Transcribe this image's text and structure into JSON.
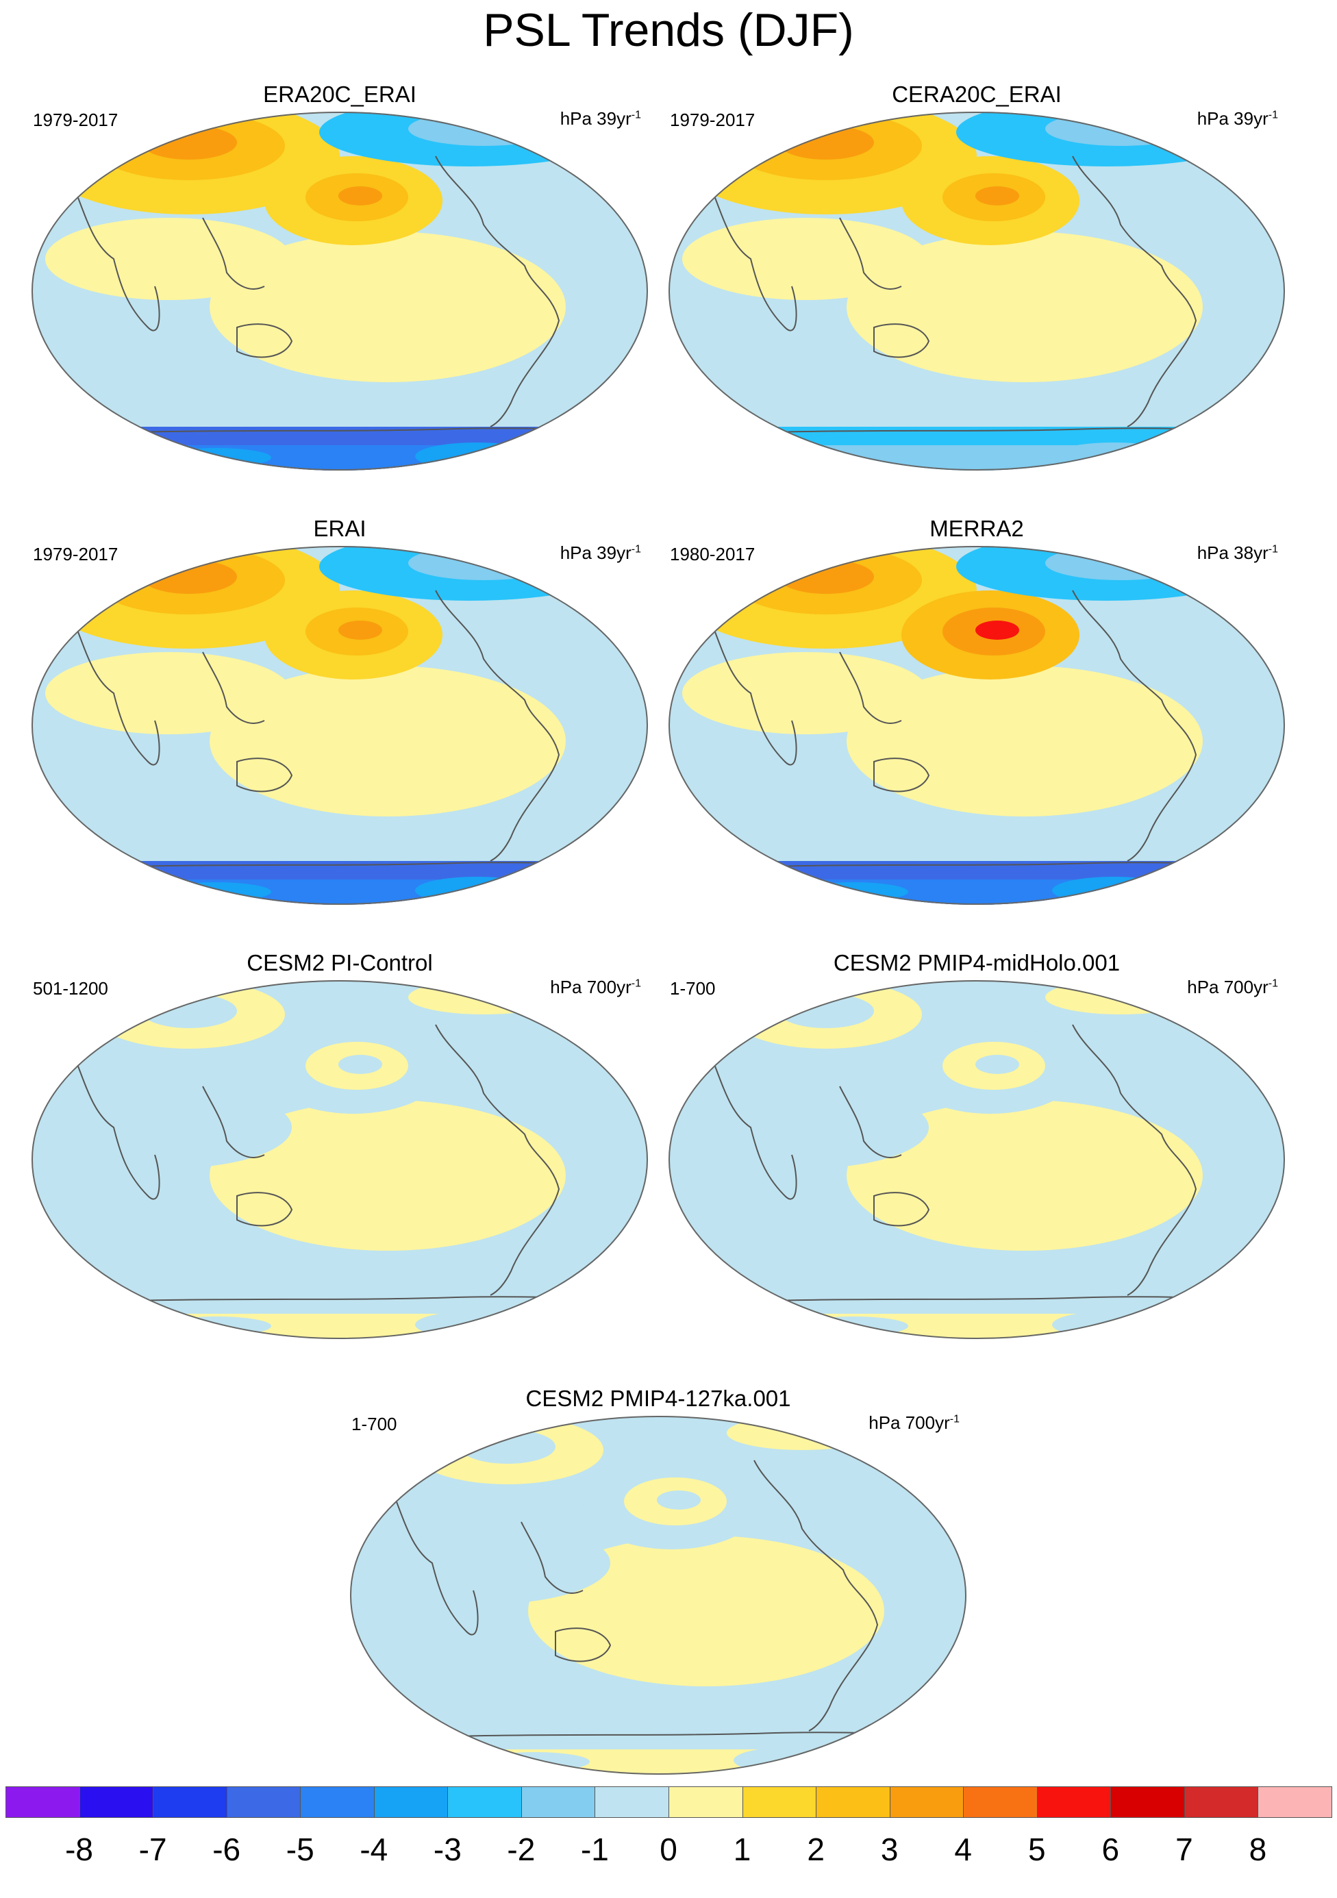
{
  "title": "PSL Trends (DJF)",
  "panels": [
    {
      "title": "ERA20C_ERAI",
      "period": "1979-2017",
      "units": "hPa 39yr",
      "units_exp": "-1",
      "pattern": {
        "nh": "warm",
        "pac": "warm",
        "so": "cold-strong",
        "arctic": "cold",
        "trop": "mixed"
      }
    },
    {
      "title": "CERA20C_ERAI",
      "period": "1979-2017",
      "units": "hPa 39yr",
      "units_exp": "-1",
      "pattern": {
        "nh": "warm",
        "pac": "warm",
        "so": "cold",
        "arctic": "cold",
        "trop": "mixed"
      }
    },
    {
      "title": "ERAI",
      "period": "1979-2017",
      "units": "hPa 39yr",
      "units_exp": "-1",
      "pattern": {
        "nh": "warm",
        "pac": "warm",
        "so": "cold-strong",
        "arctic": "cold",
        "trop": "mixed"
      }
    },
    {
      "title": "MERRA2",
      "period": "1980-2017",
      "units": "hPa 38yr",
      "units_exp": "-1",
      "pattern": {
        "nh": "warm",
        "pac": "warm-strong",
        "so": "cold-strong",
        "arctic": "cold",
        "trop": "mixed"
      }
    },
    {
      "title": "CESM2 PI-Control",
      "period": "501-1200",
      "units": "hPa 700yr",
      "units_exp": "-1",
      "pattern": {
        "nh": "weak",
        "pac": "weak",
        "so": "weak",
        "arctic": "weak",
        "trop": "weak"
      }
    },
    {
      "title": "CESM2 PMIP4-midHolo.001",
      "period": "1-700",
      "units": "hPa 700yr",
      "units_exp": "-1",
      "pattern": {
        "nh": "weak",
        "pac": "weak",
        "so": "weak",
        "arctic": "weak",
        "trop": "weak"
      }
    },
    {
      "title": "CESM2 PMIP4-127ka.001",
      "period": "1-700",
      "units": "hPa 700yr",
      "units_exp": "-1",
      "pattern": {
        "nh": "weak",
        "pac": "weak",
        "so": "weak",
        "arctic": "weak",
        "trop": "weak"
      }
    }
  ],
  "colorbar": {
    "labels": [
      "-8",
      "-7",
      "-6",
      "-5",
      "-4",
      "-3",
      "-2",
      "-1",
      "0",
      "1",
      "2",
      "3",
      "4",
      "5",
      "6",
      "7",
      "8"
    ],
    "colors": [
      "#8c1aee",
      "#2a10f0",
      "#1e3cf0",
      "#3c6ae6",
      "#2a82f5",
      "#16a2f5",
      "#28c3fa",
      "#82cdf0",
      "#bfe3f0",
      "#fdf5a0",
      "#fcd72c",
      "#fbbf16",
      "#f99d0e",
      "#f87214",
      "#f8130f",
      "#d80000",
      "#d42a2a",
      "#fcb4b4"
    ],
    "colors_note": ""
  }
}
